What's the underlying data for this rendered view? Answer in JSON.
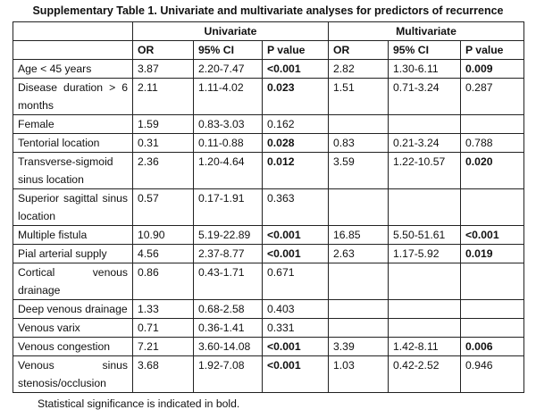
{
  "caption": "Supplementary Table 1. Univariate and multivariate analyses for predictors of recurrence",
  "groups": [
    "Univariate",
    "Multivariate"
  ],
  "columns": [
    "OR",
    "95% CI",
    "P value",
    "OR",
    "95% CI",
    "P value"
  ],
  "rows": [
    {
      "label": "Age < 45 years",
      "u_or": "3.87",
      "u_ci": "2.20-7.47",
      "u_p": "<0.001",
      "u_sig": true,
      "m_or": "2.82",
      "m_ci": "1.30-6.11",
      "m_p": "0.009",
      "m_sig": true
    },
    {
      "label": "Disease duration > 6 months",
      "u_or": "2.11",
      "u_ci": "1.11-4.02",
      "u_p": "0.023",
      "u_sig": true,
      "m_or": "1.51",
      "m_ci": "0.71-3.24",
      "m_p": "0.287",
      "m_sig": false
    },
    {
      "label": "Female",
      "u_or": "1.59",
      "u_ci": "0.83-3.03",
      "u_p": "0.162",
      "u_sig": false,
      "m_or": "",
      "m_ci": "",
      "m_p": "",
      "m_sig": false
    },
    {
      "label": "Tentorial location",
      "u_or": "0.31",
      "u_ci": "0.11-0.88",
      "u_p": "0.028",
      "u_sig": true,
      "m_or": "0.83",
      "m_ci": "0.21-3.24",
      "m_p": "0.788",
      "m_sig": false
    },
    {
      "label": "Transverse-sigmoid sinus location",
      "u_or": "2.36",
      "u_ci": "1.20-4.64",
      "u_p": "0.012",
      "u_sig": true,
      "m_or": "3.59",
      "m_ci": "1.22-10.57",
      "m_p": "0.020",
      "m_sig": true
    },
    {
      "label": "Superior sagittal sinus location",
      "u_or": "0.57",
      "u_ci": "0.17-1.91",
      "u_p": "0.363",
      "u_sig": false,
      "m_or": "",
      "m_ci": "",
      "m_p": "",
      "m_sig": false
    },
    {
      "label": "Multiple fistula",
      "u_or": "10.90",
      "u_ci": "5.19-22.89",
      "u_p": "<0.001",
      "u_sig": true,
      "m_or": "16.85",
      "m_ci": "5.50-51.61",
      "m_p": "<0.001",
      "m_sig": true
    },
    {
      "label": "Pial arterial supply",
      "u_or": "4.56",
      "u_ci": "2.37-8.77",
      "u_p": "<0.001",
      "u_sig": true,
      "m_or": "2.63",
      "m_ci": "1.17-5.92",
      "m_p": "0.019",
      "m_sig": true
    },
    {
      "label": "Cortical venous drainage",
      "u_or": "0.86",
      "u_ci": "0.43-1.71",
      "u_p": "0.671",
      "u_sig": false,
      "m_or": "",
      "m_ci": "",
      "m_p": "",
      "m_sig": false
    },
    {
      "label": "Deep venous drainage",
      "u_or": "1.33",
      "u_ci": "0.68-2.58",
      "u_p": "0.403",
      "u_sig": false,
      "m_or": "",
      "m_ci": "",
      "m_p": "",
      "m_sig": false
    },
    {
      "label": "Venous varix",
      "u_or": "0.71",
      "u_ci": "0.36-1.41",
      "u_p": "0.331",
      "u_sig": false,
      "m_or": "",
      "m_ci": "",
      "m_p": "",
      "m_sig": false
    },
    {
      "label": "Venous congestion",
      "u_or": "7.21",
      "u_ci": "3.60-14.08",
      "u_p": "<0.001",
      "u_sig": true,
      "m_or": "3.39",
      "m_ci": "1.42-8.11",
      "m_p": "0.006",
      "m_sig": true
    },
    {
      "label": "Venous sinus stenosis/occlusion",
      "u_or": "3.68",
      "u_ci": "1.92-7.08",
      "u_p": "<0.001",
      "u_sig": true,
      "m_or": "1.03",
      "m_ci": "0.42-2.52",
      "m_p": "0.946",
      "m_sig": false
    }
  ],
  "footnote": "Statistical significance is indicated in bold."
}
